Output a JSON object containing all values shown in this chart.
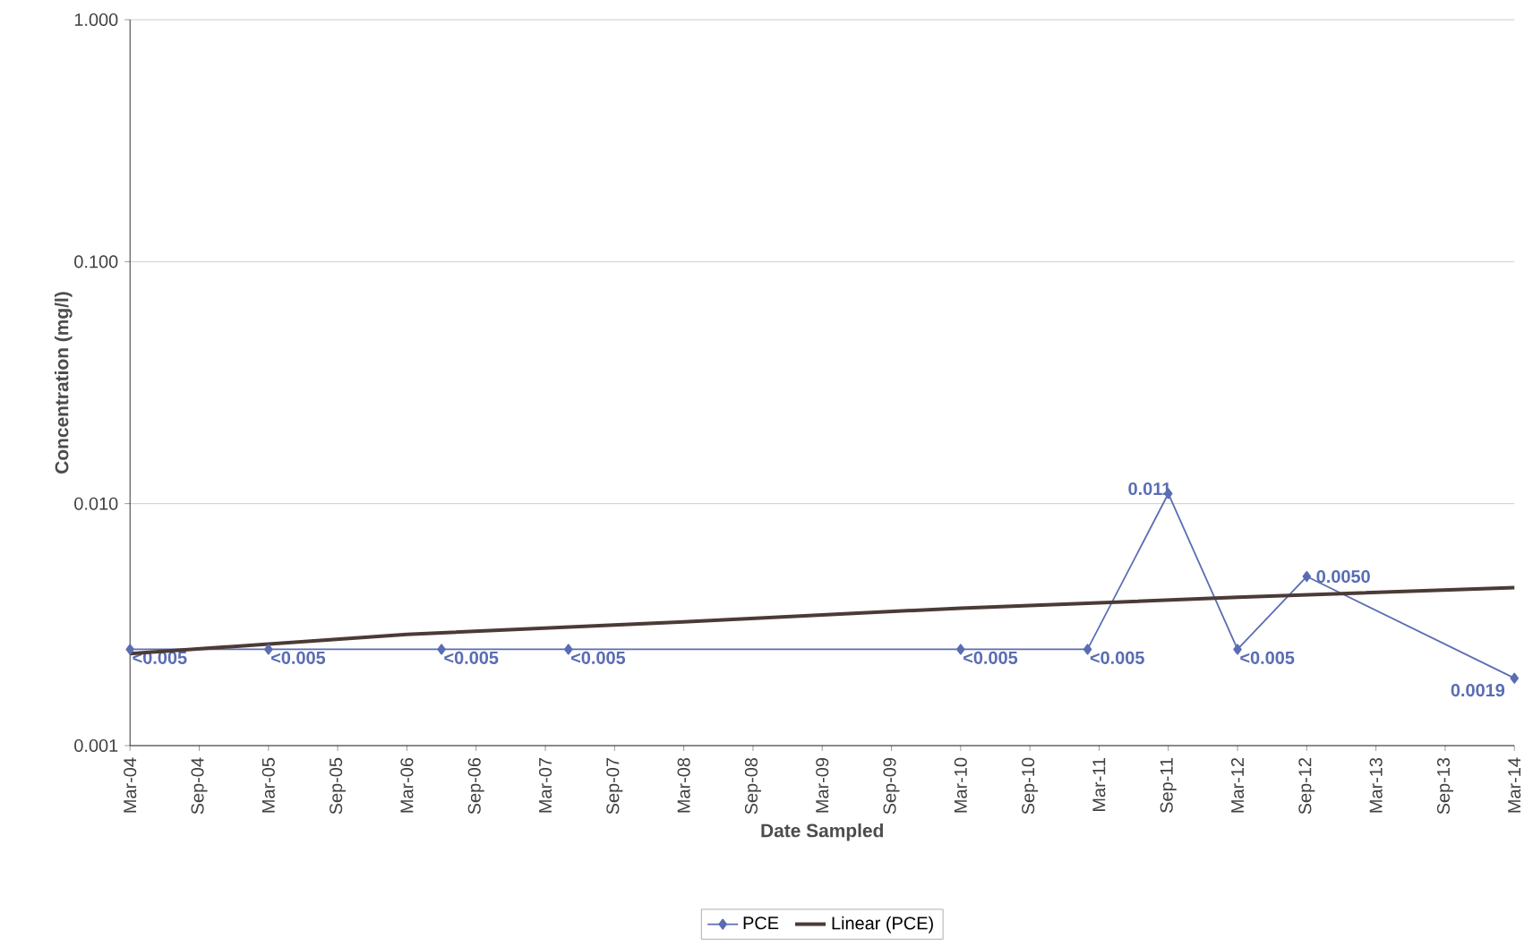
{
  "chart_data": {
    "type": "line",
    "xlabel": "Date Sampled",
    "ylabel": "Concentration (mg/l)",
    "log": "y",
    "grid": "y",
    "legend": "bottom",
    "xlim": [
      "2004-03",
      "2014-03"
    ],
    "xticks": [
      {
        "value": "2004-03",
        "label": "Mar-04"
      },
      {
        "value": "2004-09",
        "label": "Sep-04"
      },
      {
        "value": "2005-03",
        "label": "Mar-05"
      },
      {
        "value": "2005-09",
        "label": "Sep-05"
      },
      {
        "value": "2006-03",
        "label": "Mar-06"
      },
      {
        "value": "2006-09",
        "label": "Sep-06"
      },
      {
        "value": "2007-03",
        "label": "Mar-07"
      },
      {
        "value": "2007-09",
        "label": "Sep-07"
      },
      {
        "value": "2008-03",
        "label": "Mar-08"
      },
      {
        "value": "2008-09",
        "label": "Sep-08"
      },
      {
        "value": "2009-03",
        "label": "Mar-09"
      },
      {
        "value": "2009-09",
        "label": "Sep-09"
      },
      {
        "value": "2010-03",
        "label": "Mar-10"
      },
      {
        "value": "2010-09",
        "label": "Sep-10"
      },
      {
        "value": "2011-03",
        "label": "Mar-11"
      },
      {
        "value": "2011-09",
        "label": "Sep-11"
      },
      {
        "value": "2012-03",
        "label": "Mar-12"
      },
      {
        "value": "2012-09",
        "label": "Sep-12"
      },
      {
        "value": "2013-03",
        "label": "Mar-13"
      },
      {
        "value": "2013-09",
        "label": "Sep-13"
      },
      {
        "value": "2014-03",
        "label": "Mar-14"
      }
    ],
    "ylim": [
      0.001,
      1
    ],
    "yticks": [
      {
        "value": 0.001,
        "label": "0.001"
      },
      {
        "value": 0.01,
        "label": "0.010"
      },
      {
        "value": 0.1,
        "label": "0.100"
      },
      {
        "value": 1,
        "label": "1.000"
      }
    ],
    "series": [
      {
        "name": "PCE",
        "color": "#5a6db3",
        "marker": "diamond",
        "x": [
          "2004-03",
          "2005-03",
          "2006-06",
          "2007-05",
          "2010-03",
          "2011-02",
          "2011-09",
          "2012-03",
          "2012-09",
          "2014-03"
        ],
        "values": [
          0.0025,
          0.0025,
          0.0025,
          0.0025,
          0.0025,
          0.0025,
          0.011,
          0.0025,
          0.005,
          0.0019
        ],
        "value_labels": [
          "<0.005",
          "<0.005",
          "<0.005",
          "<0.005",
          "<0.005",
          "<0.005",
          "0.011",
          "<0.005",
          "0.0050",
          "0.0019"
        ]
      },
      {
        "name": "Linear (PCE)",
        "color": "#4b3b37",
        "marker": "none",
        "x": [
          "2004-03",
          "2006-03",
          "2008-03",
          "2010-03",
          "2012-03",
          "2014-03"
        ],
        "values": [
          0.0024,
          0.00288,
          0.00325,
          0.0037,
          0.0041,
          0.0045
        ]
      }
    ]
  }
}
